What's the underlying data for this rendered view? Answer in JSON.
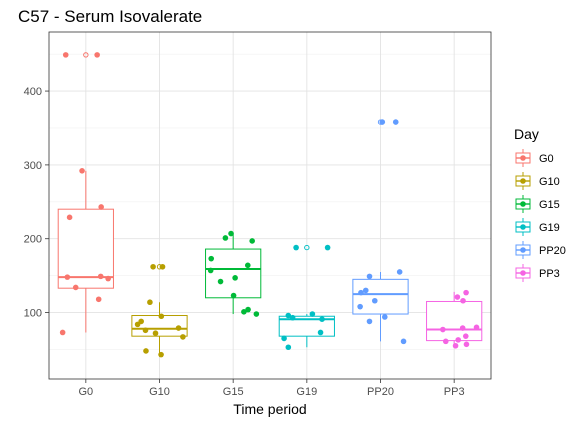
{
  "chart_data": {
    "type": "box",
    "title": "C57 - Serum Isovalerate",
    "xlabel": "Time period",
    "ylabel": "",
    "ylim": [
      10,
      480
    ],
    "yticks": [
      100,
      200,
      300,
      400
    ],
    "grid": true,
    "legend_position": "right",
    "legend_title": "Day",
    "categories": [
      "G0",
      "G10",
      "G15",
      "G19",
      "PP20",
      "PP3"
    ],
    "series": [
      {
        "name": "G0",
        "color": "#F8766D",
        "box": {
          "min": 73,
          "q1": 133,
          "median": 148,
          "q3": 240,
          "max": 292
        },
        "outliers": [
          449,
          449
        ],
        "points": [
          449,
          449,
          292,
          243,
          229,
          149,
          148,
          146,
          134,
          118,
          73
        ]
      },
      {
        "name": "G10",
        "color": "#B79F00",
        "box": {
          "min": 42,
          "q1": 68,
          "median": 78,
          "q3": 96,
          "max": 114
        },
        "outliers": [
          162,
          162
        ],
        "points": [
          162,
          162,
          114,
          95,
          88,
          84,
          79,
          76,
          72,
          67,
          48,
          43
        ]
      },
      {
        "name": "G15",
        "color": "#00BA38",
        "box": {
          "min": 98,
          "q1": 120,
          "median": 159,
          "q3": 186,
          "max": 207
        },
        "outliers": [],
        "points": [
          207,
          201,
          197,
          173,
          164,
          157,
          147,
          142,
          123,
          104,
          101,
          98
        ]
      },
      {
        "name": "G19",
        "color": "#00BFC4",
        "box": {
          "min": 53,
          "q1": 68,
          "median": 91,
          "q3": 95,
          "max": 98
        },
        "outliers": [
          188,
          188
        ],
        "points": [
          188,
          188,
          98,
          96,
          93,
          91,
          73,
          65,
          53
        ]
      },
      {
        "name": "PP20",
        "color": "#619CFF",
        "box": {
          "min": 61,
          "q1": 98,
          "median": 125,
          "q3": 145,
          "max": 155
        },
        "outliers": [
          358,
          358
        ],
        "points": [
          358,
          358,
          155,
          149,
          130,
          127,
          116,
          108,
          94,
          88,
          61
        ]
      },
      {
        "name": "PP3",
        "color": "#F564E3",
        "box": {
          "min": 55,
          "q1": 62,
          "median": 77,
          "q3": 115,
          "max": 128
        },
        "outliers": [],
        "points": [
          127,
          121,
          116,
          80,
          79,
          77,
          68,
          63,
          61,
          57,
          55
        ]
      }
    ]
  }
}
